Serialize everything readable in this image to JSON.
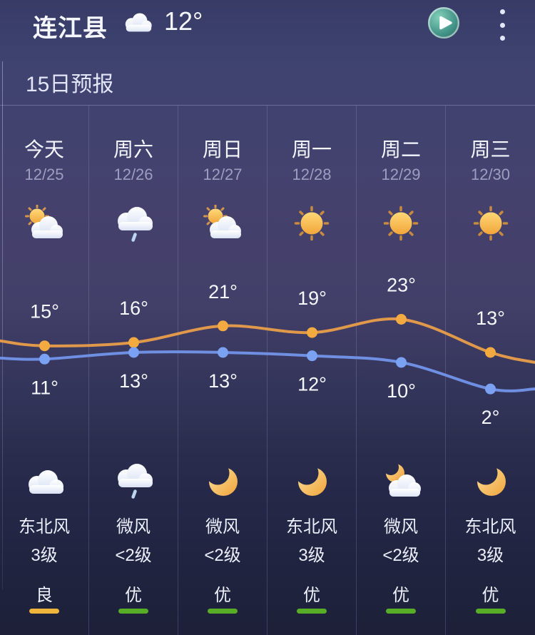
{
  "header": {
    "location": "连江县",
    "current_temp": "12°",
    "condition_icon": "cloud",
    "play_button": "播放",
    "menu_button": "更多"
  },
  "section": {
    "title": "15日预报"
  },
  "columns": [
    {
      "day": "今天",
      "date": "12/25",
      "day_icon": "cloud-sun",
      "night_icon": "cloud",
      "wind": "东北风",
      "wind_level": "3级",
      "aqi": "良",
      "aqi_color": "#efb43c"
    },
    {
      "day": "周六",
      "date": "12/26",
      "day_icon": "cloud-rain",
      "night_icon": "cloud-rain",
      "wind": "微风",
      "wind_level": "<2级",
      "aqi": "优",
      "aqi_color": "#58ad27"
    },
    {
      "day": "周日",
      "date": "12/27",
      "day_icon": "cloud-sun",
      "night_icon": "moon",
      "wind": "微风",
      "wind_level": "<2级",
      "aqi": "优",
      "aqi_color": "#58ad27"
    },
    {
      "day": "周一",
      "date": "12/28",
      "day_icon": "sun",
      "night_icon": "moon",
      "wind": "东北风",
      "wind_level": "3级",
      "aqi": "优",
      "aqi_color": "#58ad27"
    },
    {
      "day": "周二",
      "date": "12/29",
      "day_icon": "sun",
      "night_icon": "moon-cloud",
      "wind": "微风",
      "wind_level": "<2级",
      "aqi": "优",
      "aqi_color": "#58ad27"
    },
    {
      "day": "周三",
      "date": "12/30",
      "day_icon": "sun",
      "night_icon": "moon",
      "wind": "东北风",
      "wind_level": "3级",
      "aqi": "优",
      "aqi_color": "#58ad27"
    }
  ],
  "chart_data": {
    "type": "line",
    "categories": [
      "12/25",
      "12/26",
      "12/27",
      "12/28",
      "12/29",
      "12/30"
    ],
    "series": [
      {
        "name": "high",
        "color": "#e0994a",
        "point_color": "#f3ab41",
        "values": [
          15,
          16,
          21,
          19,
          23,
          13
        ],
        "edge_left": 16.5,
        "edge_right": 10
      },
      {
        "name": "low",
        "color": "#6f90e2",
        "point_color": "#7ba1f3",
        "values": [
          11,
          13,
          13,
          12,
          10,
          2
        ],
        "edge_left": 11.3,
        "edge_right": 2
      }
    ],
    "unit": "°",
    "ylim": [
      0,
      25
    ],
    "legend": "none",
    "grid": "column-dividers"
  }
}
